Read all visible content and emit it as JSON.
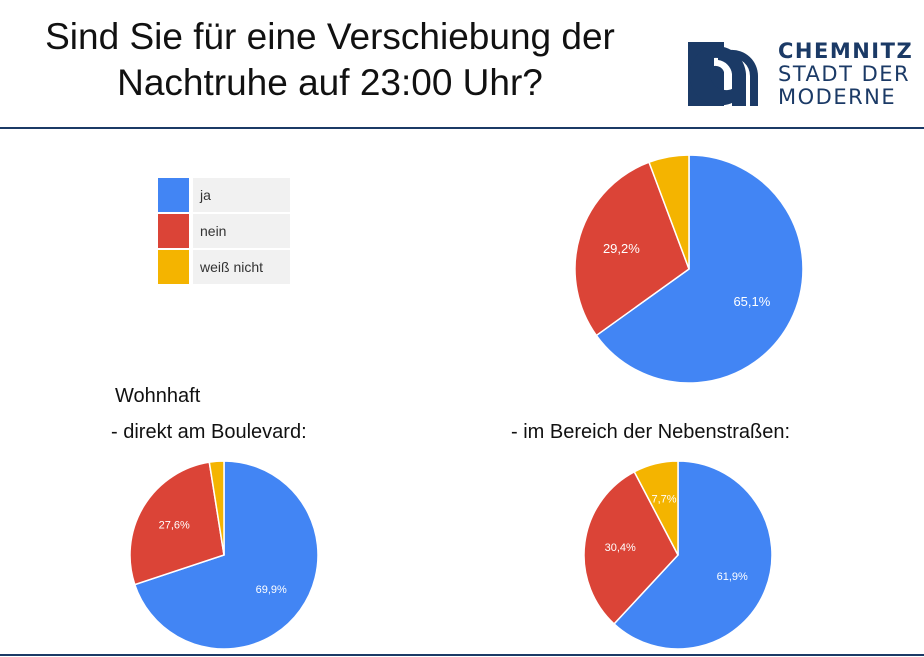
{
  "title": {
    "line1": "Sind Sie für eine Verschiebung der",
    "line2": "Nachtruhe auf 23:00 Uhr?"
  },
  "logo": {
    "line1": "CHEMNITZ",
    "line2": "STADT DER",
    "line3": "MODERNE",
    "color": "#1b3a66"
  },
  "legend": [
    {
      "label": "ja",
      "color": "#4285f4"
    },
    {
      "label": "nein",
      "color": "#db4437"
    },
    {
      "label": "weiß nicht",
      "color": "#f4b400"
    }
  ],
  "captions": {
    "resident": "Wohnhaft",
    "boulevard": "- direkt am Boulevard:",
    "side_streets": "- im Bereich der Nebenstraßen:"
  },
  "chart_data": [
    {
      "type": "pie",
      "categories": [
        "ja",
        "nein",
        "weiß nicht"
      ],
      "values": [
        65.1,
        29.2,
        5.7
      ],
      "labels": [
        "65,1%",
        "29,2%",
        ""
      ],
      "colors": [
        "#4285f4",
        "#db4437",
        "#f4b400"
      ]
    },
    {
      "type": "pie",
      "categories": [
        "ja",
        "nein",
        "weiß nicht"
      ],
      "values": [
        69.9,
        27.6,
        2.5
      ],
      "labels": [
        "69,9%",
        "27,6%",
        ""
      ],
      "colors": [
        "#4285f4",
        "#db4437",
        "#f4b400"
      ]
    },
    {
      "type": "pie",
      "categories": [
        "ja",
        "nein",
        "weiß nicht"
      ],
      "values": [
        61.9,
        30.4,
        7.7
      ],
      "labels": [
        "61,9%",
        "30,4%",
        "7,7%"
      ],
      "colors": [
        "#4285f4",
        "#db4437",
        "#f4b400"
      ]
    }
  ]
}
